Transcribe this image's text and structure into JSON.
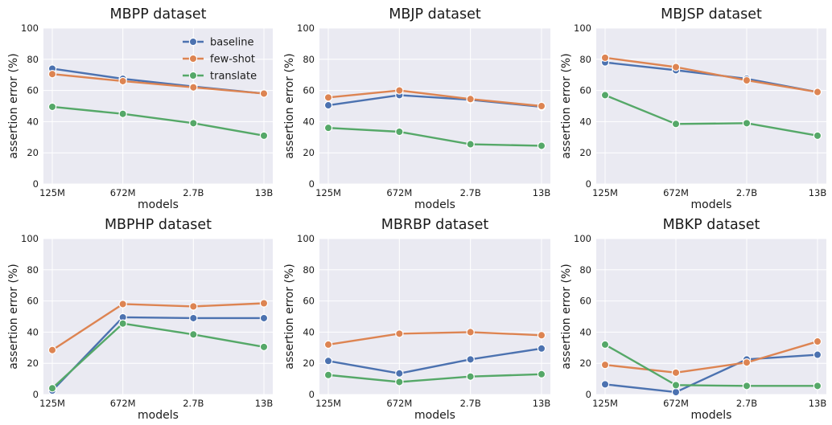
{
  "chart_data": [
    {
      "type": "line",
      "title": "MBPP dataset",
      "xlabel": "models",
      "ylabel": "assertion error (%)",
      "categories": [
        "125M",
        "672M",
        "2.7B",
        "13B"
      ],
      "ylim": [
        0,
        100
      ],
      "yticks": [
        0,
        20,
        40,
        60,
        80,
        100
      ],
      "grid": true,
      "legend": "top-right",
      "series": [
        {
          "name": "baseline",
          "color": "#4c72b0",
          "values": [
            74,
            67.5,
            62.5,
            58
          ]
        },
        {
          "name": "few-shot",
          "color": "#dd8452",
          "values": [
            70.5,
            66,
            62,
            58
          ]
        },
        {
          "name": "translate",
          "color": "#55a868",
          "values": [
            49.5,
            45,
            39,
            31
          ]
        }
      ]
    },
    {
      "type": "line",
      "title": "MBJP dataset",
      "xlabel": "models",
      "ylabel": "assertion error (%)",
      "categories": [
        "125M",
        "672M",
        "2.7B",
        "13B"
      ],
      "ylim": [
        0,
        100
      ],
      "yticks": [
        0,
        20,
        40,
        60,
        80,
        100
      ],
      "grid": true,
      "series": [
        {
          "color": "#4c72b0",
          "values": [
            50.5,
            57,
            54,
            49.5
          ]
        },
        {
          "color": "#dd8452",
          "values": [
            55.5,
            60,
            54.5,
            50
          ]
        },
        {
          "color": "#55a868",
          "values": [
            36,
            33.5,
            25.5,
            24.5
          ]
        }
      ]
    },
    {
      "type": "line",
      "title": "MBJSP dataset",
      "xlabel": "models",
      "ylabel": "assertion error (%)",
      "categories": [
        "125M",
        "672M",
        "2.7B",
        "13B"
      ],
      "ylim": [
        0,
        100
      ],
      "yticks": [
        0,
        20,
        40,
        60,
        80,
        100
      ],
      "grid": true,
      "series": [
        {
          "color": "#4c72b0",
          "values": [
            78,
            73,
            67.5,
            59
          ]
        },
        {
          "color": "#dd8452",
          "values": [
            81,
            75,
            66.5,
            59
          ]
        },
        {
          "color": "#55a868",
          "values": [
            57,
            38.5,
            39,
            31
          ]
        }
      ]
    },
    {
      "type": "line",
      "title": "MBPHP dataset",
      "xlabel": "models",
      "ylabel": "assertion error (%)",
      "categories": [
        "125M",
        "672M",
        "2.7B",
        "13B"
      ],
      "ylim": [
        0,
        100
      ],
      "yticks": [
        0,
        20,
        40,
        60,
        80,
        100
      ],
      "grid": true,
      "series": [
        {
          "color": "#4c72b0",
          "values": [
            2.5,
            49.5,
            49,
            49
          ]
        },
        {
          "color": "#dd8452",
          "values": [
            28.5,
            58,
            56.5,
            58.5
          ]
        },
        {
          "color": "#55a868",
          "values": [
            4,
            45.5,
            38.5,
            30.5
          ]
        }
      ]
    },
    {
      "type": "line",
      "title": "MBRBP dataset",
      "xlabel": "models",
      "ylabel": "assertion error (%)",
      "categories": [
        "125M",
        "672M",
        "2.7B",
        "13B"
      ],
      "ylim": [
        0,
        100
      ],
      "yticks": [
        0,
        20,
        40,
        60,
        80,
        100
      ],
      "grid": true,
      "series": [
        {
          "color": "#4c72b0",
          "values": [
            21.5,
            13.5,
            22.5,
            29.5
          ]
        },
        {
          "color": "#dd8452",
          "values": [
            32,
            39,
            40,
            38
          ]
        },
        {
          "color": "#55a868",
          "values": [
            12.5,
            8,
            11.5,
            13
          ]
        }
      ]
    },
    {
      "type": "line",
      "title": "MBKP dataset",
      "xlabel": "models",
      "ylabel": "assertion error (%)",
      "categories": [
        "125M",
        "672M",
        "2.7B",
        "13B"
      ],
      "ylim": [
        0,
        100
      ],
      "yticks": [
        0,
        20,
        40,
        60,
        80,
        100
      ],
      "grid": true,
      "series": [
        {
          "color": "#4c72b0",
          "values": [
            6.5,
            1.5,
            22.5,
            25.5
          ]
        },
        {
          "color": "#dd8452",
          "values": [
            19,
            14,
            20.5,
            34
          ]
        },
        {
          "color": "#55a868",
          "values": [
            32,
            6,
            5.5,
            5.5
          ]
        }
      ]
    }
  ],
  "style": {
    "plot_background": "#eaeaf2",
    "grid_color": "#ffffff",
    "marker_edge": "#ffffff"
  }
}
